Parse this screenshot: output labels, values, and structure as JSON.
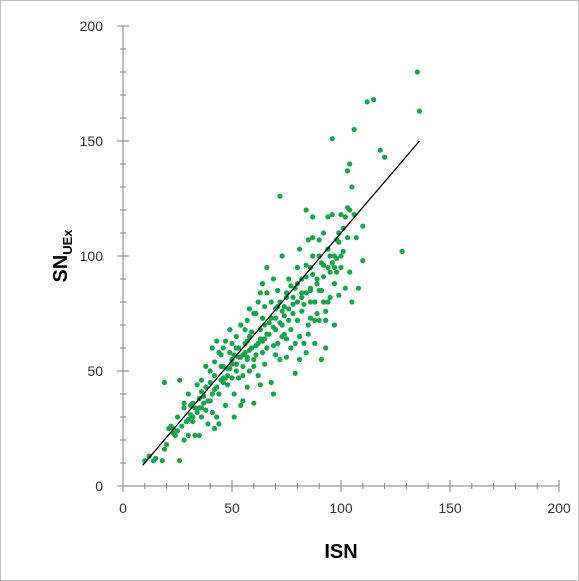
{
  "chart_data": {
    "type": "scatter",
    "title": "",
    "xlabel": "ISN",
    "ylabel": {
      "main": "SN",
      "sub": "UEx"
    },
    "xlim": [
      0,
      200
    ],
    "ylim": [
      0,
      200
    ],
    "xticks": [
      0,
      50,
      100,
      150,
      200
    ],
    "yticks": [
      0,
      50,
      100,
      150,
      200
    ],
    "grid": false,
    "legend": "none",
    "colors": {
      "points": "#1aa34a",
      "fit_line": "#000000",
      "axis": "#7f7f7f"
    },
    "series": [
      {
        "type": "scatter",
        "points": [
          [
            10,
            11
          ],
          [
            12,
            13
          ],
          [
            14,
            11
          ],
          [
            18,
            11
          ],
          [
            19,
            16
          ],
          [
            19,
            45
          ],
          [
            21,
            25
          ],
          [
            23,
            25
          ],
          [
            24,
            22
          ],
          [
            25,
            24
          ],
          [
            26,
            11
          ],
          [
            26,
            46
          ],
          [
            28,
            20
          ],
          [
            28,
            34
          ],
          [
            30,
            22
          ],
          [
            31,
            35
          ],
          [
            32,
            28
          ],
          [
            32,
            36
          ],
          [
            33,
            22
          ],
          [
            34,
            32
          ],
          [
            34,
            44
          ],
          [
            35,
            22
          ],
          [
            35,
            38
          ],
          [
            36,
            30
          ],
          [
            36,
            41
          ],
          [
            37,
            36
          ],
          [
            38,
            43
          ],
          [
            38,
            33
          ],
          [
            39,
            27
          ],
          [
            40,
            37
          ],
          [
            40,
            45
          ],
          [
            41,
            40
          ],
          [
            41,
            32
          ],
          [
            41,
            60
          ],
          [
            42,
            25
          ],
          [
            42,
            48
          ],
          [
            42,
            54
          ],
          [
            43,
            30
          ],
          [
            43,
            63
          ],
          [
            44,
            27
          ],
          [
            44,
            40
          ],
          [
            45,
            52
          ],
          [
            45,
            57
          ],
          [
            46,
            47
          ],
          [
            46,
            45
          ],
          [
            46,
            60
          ],
          [
            47,
            35
          ],
          [
            47,
            63
          ],
          [
            48,
            51
          ],
          [
            48,
            44
          ],
          [
            49,
            58
          ],
          [
            49,
            68
          ],
          [
            50,
            55
          ],
          [
            50,
            47
          ],
          [
            50,
            62
          ],
          [
            51,
            40
          ],
          [
            51,
            57
          ],
          [
            51,
            30
          ],
          [
            52,
            50
          ],
          [
            52,
            65
          ],
          [
            53,
            60
          ],
          [
            53,
            47
          ],
          [
            54,
            35
          ],
          [
            54,
            70
          ],
          [
            55,
            57
          ],
          [
            55,
            52
          ],
          [
            55,
            37
          ],
          [
            56,
            62
          ],
          [
            56,
            58
          ],
          [
            57,
            72
          ],
          [
            57,
            55
          ],
          [
            57,
            43
          ],
          [
            58,
            50
          ],
          [
            58,
            65
          ],
          [
            59,
            60
          ],
          [
            60,
            36
          ],
          [
            60,
            55
          ],
          [
            61,
            57
          ],
          [
            61,
            75
          ],
          [
            62,
            48
          ],
          [
            62,
            62
          ],
          [
            63,
            68
          ],
          [
            63,
            44
          ],
          [
            64,
            88
          ],
          [
            64,
            58
          ],
          [
            65,
            64
          ],
          [
            65,
            53
          ],
          [
            65,
            70
          ],
          [
            66,
            84
          ],
          [
            66,
            60
          ],
          [
            67,
            66
          ],
          [
            68,
            73
          ],
          [
            68,
            45
          ],
          [
            69,
            40
          ],
          [
            69,
            61
          ],
          [
            70,
            57
          ],
          [
            70,
            77
          ],
          [
            70,
            68
          ],
          [
            71,
            62
          ],
          [
            71,
            85
          ],
          [
            72,
            80
          ],
          [
            72,
            55
          ],
          [
            73,
            100
          ],
          [
            73,
            70
          ],
          [
            74,
            66
          ],
          [
            74,
            78
          ],
          [
            75,
            64
          ],
          [
            75,
            84
          ],
          [
            75,
            56
          ],
          [
            76,
            72
          ],
          [
            76,
            90
          ],
          [
            77,
            87
          ],
          [
            77,
            68
          ],
          [
            78,
            82
          ],
          [
            78,
            75
          ],
          [
            79,
            62
          ],
          [
            79,
            49
          ],
          [
            80,
            95
          ],
          [
            80,
            88
          ],
          [
            80,
            72
          ],
          [
            81,
            65
          ],
          [
            81,
            103
          ],
          [
            82,
            84
          ],
          [
            82,
            76
          ],
          [
            83,
            79
          ],
          [
            83,
            62
          ],
          [
            84,
            91
          ],
          [
            84,
            58
          ],
          [
            84,
            120
          ],
          [
            85,
            70
          ],
          [
            85,
            107
          ],
          [
            86,
            80
          ],
          [
            86,
            85
          ],
          [
            86,
            95
          ],
          [
            87,
            100
          ],
          [
            87,
            117
          ],
          [
            87,
            108
          ],
          [
            88,
            62
          ],
          [
            88,
            80
          ],
          [
            89,
            90
          ],
          [
            89,
            75
          ],
          [
            90,
            107
          ],
          [
            90,
            72
          ],
          [
            90,
            100
          ],
          [
            91,
            85
          ],
          [
            91,
            55
          ],
          [
            92,
            96
          ],
          [
            92,
            110
          ],
          [
            93,
            72
          ],
          [
            93,
            60
          ],
          [
            94,
            103
          ],
          [
            94,
            117
          ],
          [
            95,
            93
          ],
          [
            95,
            82
          ],
          [
            96,
            151
          ],
          [
            96,
            118
          ],
          [
            97,
            100
          ],
          [
            97,
            70
          ],
          [
            98,
            93
          ],
          [
            98,
            107
          ],
          [
            99,
            83
          ],
          [
            99,
            110
          ],
          [
            100,
            118
          ],
          [
            100,
            95
          ],
          [
            101,
            102
          ],
          [
            102,
            86
          ],
          [
            102,
            117
          ],
          [
            103,
            121
          ],
          [
            103,
            137
          ],
          [
            104,
            140
          ],
          [
            104,
            93
          ],
          [
            105,
            80
          ],
          [
            105,
            130
          ],
          [
            106,
            155
          ],
          [
            108,
            86
          ],
          [
            110,
            98
          ],
          [
            112,
            167
          ],
          [
            115,
            168
          ],
          [
            118,
            146
          ],
          [
            120,
            143
          ],
          [
            128,
            102
          ],
          [
            135,
            180
          ],
          [
            136,
            163
          ],
          [
            15,
            12
          ],
          [
            20,
            18
          ],
          [
            23,
            23
          ],
          [
            27,
            26
          ],
          [
            29,
            28
          ],
          [
            31,
            31
          ],
          [
            33,
            34
          ],
          [
            35,
            34
          ],
          [
            37,
            39
          ],
          [
            39,
            37
          ],
          [
            43,
            43
          ],
          [
            47,
            47
          ],
          [
            49,
            51
          ],
          [
            52,
            53
          ],
          [
            54,
            56
          ],
          [
            58,
            59
          ],
          [
            61,
            61
          ],
          [
            63,
            64
          ],
          [
            66,
            66
          ],
          [
            69,
            69
          ],
          [
            72,
            71
          ],
          [
            74,
            74
          ],
          [
            76,
            77
          ],
          [
            78,
            79
          ],
          [
            82,
            82
          ],
          [
            84,
            84
          ],
          [
            86,
            86
          ],
          [
            89,
            88
          ],
          [
            92,
            91
          ],
          [
            94,
            95
          ],
          [
            96,
            97
          ],
          [
            98,
            99
          ],
          [
            72,
            126
          ],
          [
            62,
            80
          ],
          [
            58,
            77
          ],
          [
            56,
            68
          ],
          [
            52,
            60
          ],
          [
            46,
            52
          ],
          [
            44,
            58
          ],
          [
            40,
            50
          ],
          [
            38,
            52
          ],
          [
            36,
            46
          ],
          [
            30,
            40
          ],
          [
            28,
            36
          ],
          [
            25,
            30
          ],
          [
            22,
            26
          ],
          [
            64,
            73
          ],
          [
            67,
            71
          ],
          [
            70,
            73
          ],
          [
            73,
            76
          ],
          [
            80,
            80
          ],
          [
            84,
            96
          ],
          [
            87,
            92
          ],
          [
            91,
            97
          ],
          [
            94,
            80
          ],
          [
            97,
            88
          ],
          [
            100,
            100
          ],
          [
            103,
            108
          ],
          [
            106,
            118
          ],
          [
            66,
            95
          ],
          [
            63,
            84
          ],
          [
            60,
            75
          ],
          [
            57,
            63
          ],
          [
            53,
            56
          ],
          [
            50,
            53
          ],
          [
            48,
            48
          ],
          [
            45,
            46
          ],
          [
            42,
            42
          ],
          [
            68,
            80
          ],
          [
            71,
            78
          ],
          [
            75,
            82
          ],
          [
            79,
            86
          ],
          [
            82,
            90
          ],
          [
            85,
            66
          ],
          [
            88,
            72
          ],
          [
            92,
            80
          ],
          [
            95,
            100
          ],
          [
            99,
            106
          ],
          [
            101,
            112
          ],
          [
            104,
            120
          ],
          [
            107,
            108
          ],
          [
            110,
            113
          ],
          [
            30,
            29
          ],
          [
            32,
            30
          ],
          [
            36,
            34
          ],
          [
            60,
            52
          ],
          [
            55,
            48
          ],
          [
            57,
            56
          ],
          [
            59,
            67
          ],
          [
            64,
            63
          ],
          [
            65,
            78
          ],
          [
            69,
            90
          ],
          [
            73,
            65
          ],
          [
            77,
            60
          ],
          [
            81,
            55
          ],
          [
            86,
            73
          ],
          [
            90,
            85
          ],
          [
            93,
            76
          ],
          [
            97,
            95
          ]
        ]
      },
      {
        "type": "line",
        "points": [
          [
            9,
            9
          ],
          [
            136,
            150
          ]
        ]
      }
    ]
  }
}
